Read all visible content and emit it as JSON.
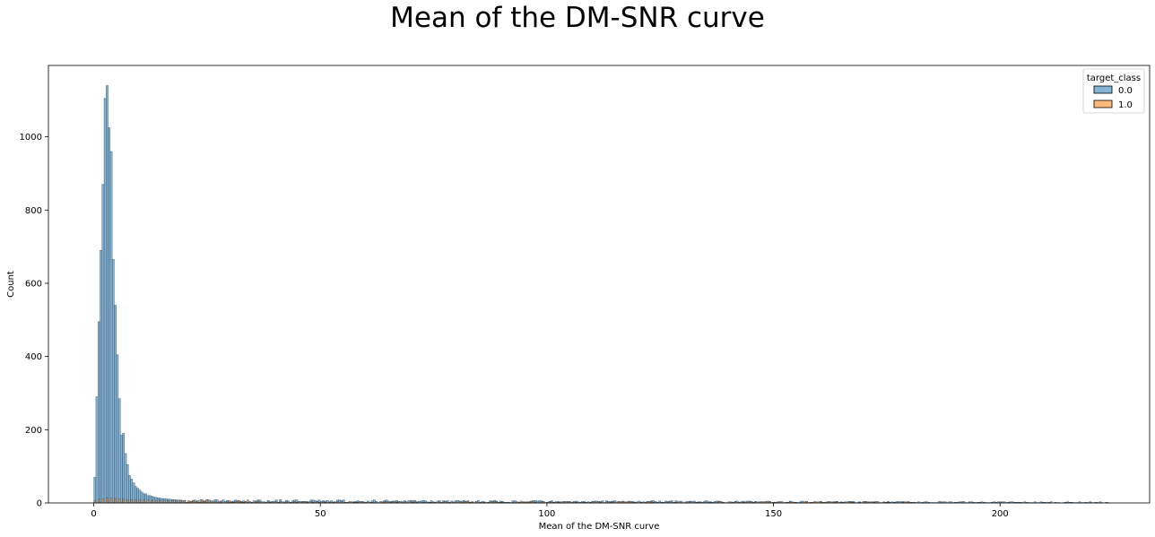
{
  "chart_data": {
    "type": "bar",
    "subtype": "histogram",
    "title": "Mean of the DM-SNR curve",
    "xlabel": "Mean of the DM-SNR curve",
    "ylabel": "Count",
    "xlim": [
      -10,
      233
    ],
    "ylim": [
      0,
      1195
    ],
    "xticks": [
      0,
      50,
      100,
      150,
      200
    ],
    "yticks": [
      0,
      200,
      400,
      600,
      800,
      1000
    ],
    "grid": false,
    "legend": {
      "title": "target_class",
      "placement": "top-right"
    },
    "colors": {
      "0.0": "#1f77b4",
      "1.0": "#ff7f0e"
    },
    "bin_width": 0.45,
    "series": [
      {
        "name": "0.0",
        "x": [
          0.25,
          0.7,
          1.15,
          1.6,
          2.05,
          2.5,
          2.95,
          3.4,
          3.85,
          4.3,
          4.75,
          5.2,
          5.65,
          6.1,
          6.55,
          7.0,
          7.45,
          7.9,
          8.35,
          8.8,
          9.25,
          9.7,
          10.15,
          10.6,
          11.05,
          11.5,
          11.95,
          12.4,
          12.85,
          13.3,
          13.75,
          14.2,
          14.65,
          15.1,
          15.55,
          16.0,
          16.45,
          16.9,
          17.35,
          17.8,
          18.25,
          18.7,
          19.15,
          19.6,
          20.05
        ],
        "values": [
          70,
          290,
          495,
          690,
          870,
          1105,
          1140,
          1025,
          960,
          665,
          540,
          405,
          285,
          185,
          190,
          135,
          105,
          75,
          65,
          55,
          45,
          40,
          35,
          30,
          25,
          25,
          20,
          20,
          18,
          16,
          15,
          14,
          13,
          12,
          12,
          11,
          10,
          10,
          9,
          9,
          8,
          8,
          8,
          7,
          7
        ]
      },
      {
        "name": "1.0",
        "x": [
          0.25,
          1.15,
          2.05,
          2.95,
          3.85,
          4.75,
          5.65,
          6.55,
          7.45,
          8.35,
          9.25,
          10.15,
          11.05,
          11.95,
          12.85,
          13.75,
          14.65,
          15.55,
          16.45,
          17.35,
          18.25,
          19.15,
          20.05,
          21.0,
          22.0,
          23.0,
          24.0,
          25.0,
          26.0,
          28.0,
          30.0,
          32.0,
          34.0,
          36.0
        ],
        "values": [
          6,
          10,
          12,
          14,
          13,
          12,
          11,
          10,
          9,
          9,
          8,
          8,
          8,
          8,
          7,
          7,
          7,
          7,
          6,
          6,
          6,
          6,
          6,
          6,
          7,
          7,
          8,
          8,
          6,
          5,
          6,
          7,
          8,
          5
        ]
      }
    ],
    "tail": {
      "x_range": [
        20,
        224
      ],
      "count_range": [
        0,
        9
      ]
    }
  }
}
